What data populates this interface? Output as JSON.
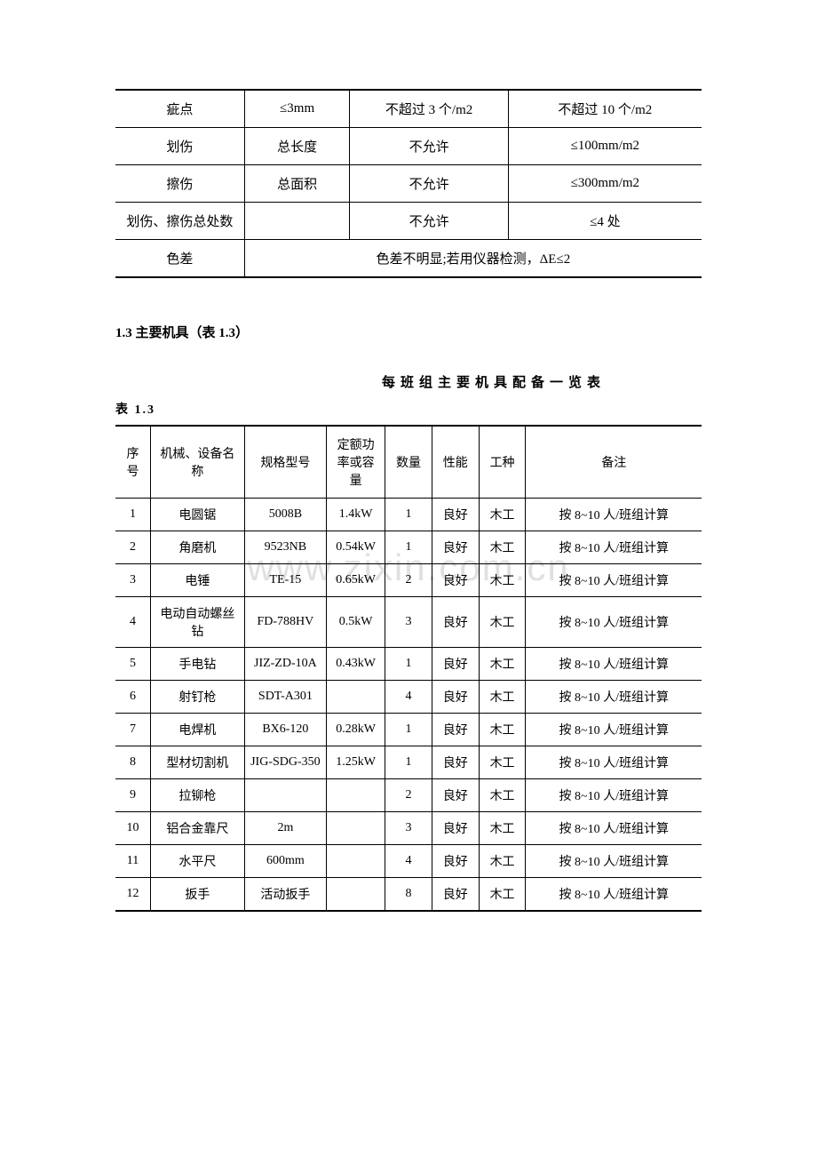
{
  "table1": {
    "rows": [
      {
        "c1": "疵点",
        "c2": "≤3mm",
        "c3": "不超过 3 个/m2",
        "c4": "不超过 10 个/m2"
      },
      {
        "c1": "划伤",
        "c2": "总长度",
        "c3": "不允许",
        "c4": "≤100mm/m2"
      },
      {
        "c1": "擦伤",
        "c2": "总面积",
        "c3": "不允许",
        "c4": "≤300mm/m2"
      },
      {
        "c1": "划伤、擦伤总处数",
        "c2": "",
        "c3": "不允许",
        "c4": "≤4 处"
      },
      {
        "c1": "色差",
        "c234": "色差不明显;若用仪器检测，ΔE≤2"
      }
    ]
  },
  "section_title": "1.3 主要机具（表 1.3）",
  "table2_title": "每班组主要机具配备一览表",
  "table2_label": "表 1.3",
  "table2": {
    "headers": {
      "seq": "序号",
      "name": "机械、设备名称",
      "model": "规格型号",
      "power": "定额功率或容量",
      "qty": "数量",
      "perf": "性能",
      "type": "工种",
      "note": "备注"
    },
    "rows": [
      {
        "seq": "1",
        "name": "电圆锯",
        "model": "5008B",
        "power": "1.4kW",
        "qty": "1",
        "perf": "良好",
        "type": "木工",
        "note": "按 8~10 人/班组计算"
      },
      {
        "seq": "2",
        "name": "角磨机",
        "model": "9523NB",
        "power": "0.54kW",
        "qty": "1",
        "perf": "良好",
        "type": "木工",
        "note": "按 8~10 人/班组计算"
      },
      {
        "seq": "3",
        "name": "电锤",
        "model": "TE-15",
        "power": "0.65kW",
        "qty": "2",
        "perf": "良好",
        "type": "木工",
        "note": "按 8~10 人/班组计算"
      },
      {
        "seq": "4",
        "name": "电动自动螺丝钻",
        "model": "FD-788HV",
        "power": "0.5kW",
        "qty": "3",
        "perf": "良好",
        "type": "木工",
        "note": "按 8~10 人/班组计算"
      },
      {
        "seq": "5",
        "name": "手电钻",
        "model": "JIZ-ZD-10A",
        "power": "0.43kW",
        "qty": "1",
        "perf": "良好",
        "type": "木工",
        "note": "按 8~10 人/班组计算"
      },
      {
        "seq": "6",
        "name": "射钉枪",
        "model": "SDT-A301",
        "power": "",
        "qty": "4",
        "perf": "良好",
        "type": "木工",
        "note": "按 8~10 人/班组计算"
      },
      {
        "seq": "7",
        "name": "电焊机",
        "model": "BX6-120",
        "power": "0.28kW",
        "qty": "1",
        "perf": "良好",
        "type": "木工",
        "note": "按 8~10 人/班组计算"
      },
      {
        "seq": "8",
        "name": "型材切割机",
        "model": "JIG-SDG-350",
        "power": "1.25kW",
        "qty": "1",
        "perf": "良好",
        "type": "木工",
        "note": "按 8~10 人/班组计算"
      },
      {
        "seq": "9",
        "name": "拉铆枪",
        "model": "",
        "power": "",
        "qty": "2",
        "perf": "良好",
        "type": "木工",
        "note": "按 8~10 人/班组计算"
      },
      {
        "seq": "10",
        "name": "铝合金靠尺",
        "model": "2m",
        "power": "",
        "qty": "3",
        "perf": "良好",
        "type": "木工",
        "note": "按 8~10 人/班组计算"
      },
      {
        "seq": "11",
        "name": "水平尺",
        "model": "600mm",
        "power": "",
        "qty": "4",
        "perf": "良好",
        "type": "木工",
        "note": "按 8~10 人/班组计算"
      },
      {
        "seq": "12",
        "name": "扳手",
        "model": "活动扳手",
        "power": "",
        "qty": "8",
        "perf": "良好",
        "type": "木工",
        "note": "按 8~10 人/班组计算"
      }
    ]
  },
  "watermark": "www.zixin.com.cn"
}
